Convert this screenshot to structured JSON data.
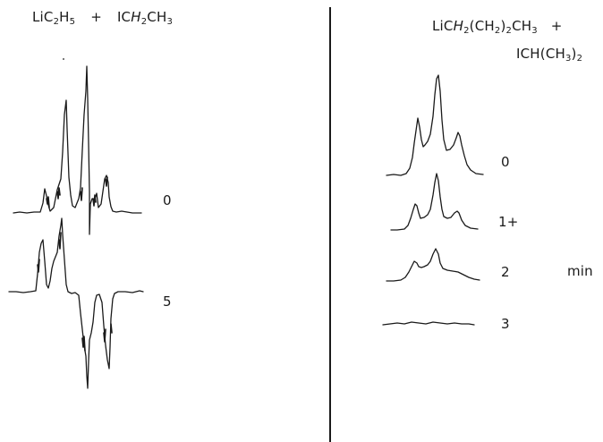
{
  "left_panel": {
    "reaction": {
      "reagent1": {
        "prefix": "LiC",
        "sub1": "2",
        "mid": "H",
        "sub2": "5"
      },
      "plus": "+",
      "reagent2": {
        "prefix": "IC",
        "italic": "H",
        "sub1": "2",
        "suffix": "CH",
        "sub2": "3"
      }
    },
    "spectra": [
      {
        "time_label": "0"
      },
      {
        "time_label": "5"
      }
    ]
  },
  "right_panel": {
    "reaction": {
      "reagent1": {
        "prefix": "LiC",
        "italic": "H",
        "sub1": "2",
        "mid": "(CH",
        "sub2": "2",
        "mid2": ")",
        "sub3": "2",
        "suffix": "CH",
        "sub4": "3"
      },
      "plus": "+",
      "reagent2": {
        "prefix": "ICH(CH",
        "sub1": "3",
        "suffix": ")",
        "sub2": "2"
      }
    },
    "spectra": [
      {
        "time_label": "0"
      },
      {
        "time_label": "1+"
      },
      {
        "time_label": "2"
      },
      {
        "time_label": "3"
      }
    ],
    "unit_label": "min"
  }
}
